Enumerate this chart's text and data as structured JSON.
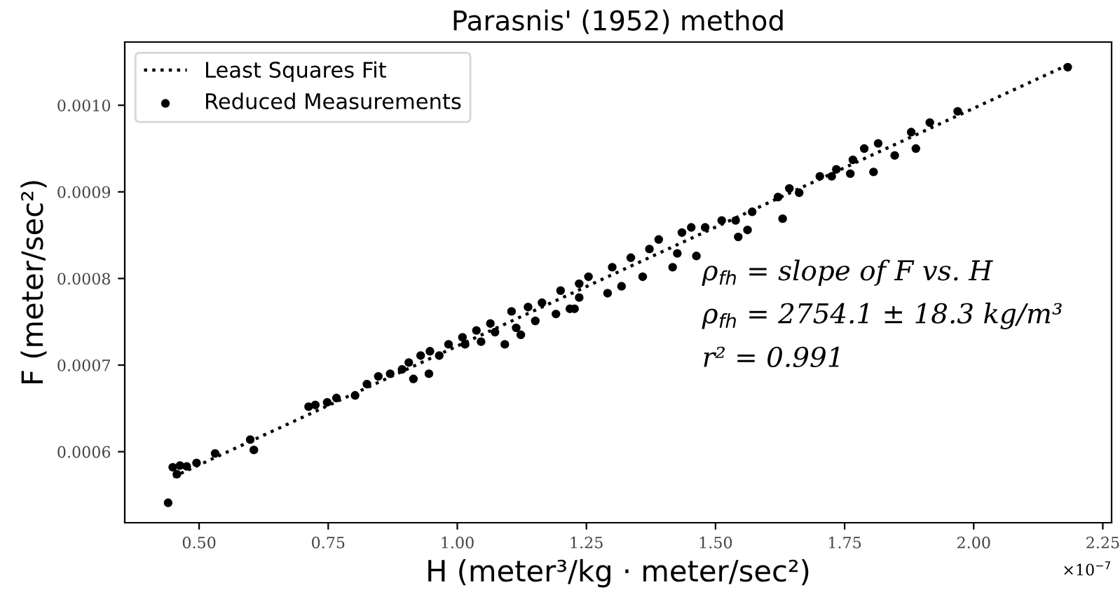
{
  "chart_data": {
    "type": "scatter",
    "title": "Parasnis' (1952) method",
    "xlabel": "H (meter³/kg · meter/sec²)",
    "ylabel": "F (meter/sec²)",
    "series": [
      {
        "name": "Least Squares Fit",
        "type": "line",
        "line_style": "dotted",
        "marker": "none",
        "color": "#000000",
        "x": [
          0.45,
          2.18
        ],
        "values": [
          0.000571,
          0.001046
        ]
      },
      {
        "name": "Reduced Measurements",
        "marker": "circle",
        "color": "#000000",
        "x": [
          0.44,
          0.449,
          0.457,
          0.463,
          0.476,
          0.495,
          0.531,
          0.599,
          0.606,
          0.712,
          0.725,
          0.748,
          0.766,
          0.802,
          0.825,
          0.847,
          0.87,
          0.893,
          0.906,
          0.915,
          0.929,
          0.945,
          0.947,
          0.965,
          0.983,
          1.01,
          1.015,
          1.037,
          1.046,
          1.064,
          1.073,
          1.092,
          1.105,
          1.114,
          1.123,
          1.137,
          1.151,
          1.164,
          1.191,
          1.2,
          1.218,
          1.236,
          1.236,
          1.227,
          1.254,
          1.291,
          1.3,
          1.318,
          1.336,
          1.359,
          1.372,
          1.39,
          1.417,
          1.426,
          1.435,
          1.453,
          1.463,
          1.48,
          1.512,
          1.539,
          1.544,
          1.562,
          1.571,
          1.621,
          1.63,
          1.643,
          1.662,
          1.702,
          1.725,
          1.734,
          1.761,
          1.766,
          1.788,
          1.806,
          1.815,
          1.847,
          1.879,
          1.888,
          1.915,
          1.969,
          2.182
        ],
        "values": [
          0.000541,
          0.000582,
          0.000574,
          0.000584,
          0.000583,
          0.000587,
          0.000598,
          0.000614,
          0.000602,
          0.000652,
          0.000654,
          0.000657,
          0.000662,
          0.000665,
          0.000678,
          0.000687,
          0.00069,
          0.000695,
          0.000703,
          0.000684,
          0.000711,
          0.00069,
          0.000716,
          0.000711,
          0.000724,
          0.000732,
          0.000724,
          0.00074,
          0.000727,
          0.000748,
          0.000738,
          0.000724,
          0.000762,
          0.000743,
          0.000735,
          0.000767,
          0.000751,
          0.000772,
          0.000759,
          0.000786,
          0.000765,
          0.000794,
          0.000778,
          0.000765,
          0.000802,
          0.000783,
          0.000813,
          0.000791,
          0.000824,
          0.000802,
          0.000834,
          0.000845,
          0.000813,
          0.000829,
          0.000853,
          0.000859,
          0.000826,
          0.000859,
          0.000867,
          0.000867,
          0.000848,
          0.000856,
          0.000877,
          0.000894,
          0.000869,
          0.000904,
          0.000899,
          0.000918,
          0.000918,
          0.000926,
          0.000921,
          0.000937,
          0.00095,
          0.000923,
          0.000956,
          0.000942,
          0.000969,
          0.00095,
          0.00098,
          0.000993,
          0.001044
        ]
      }
    ],
    "xlim": [
      0.356,
      2.267
    ],
    "xticks": [
      {
        "value": 0.5,
        "label": "0.50"
      },
      {
        "value": 0.75,
        "label": "0.75"
      },
      {
        "value": 1.0,
        "label": "1.00"
      },
      {
        "value": 1.25,
        "label": "1.25"
      },
      {
        "value": 1.5,
        "label": "1.50"
      },
      {
        "value": 1.75,
        "label": "1.75"
      },
      {
        "value": 2.0,
        "label": "2.00"
      },
      {
        "value": 2.25,
        "label": "2.25"
      }
    ],
    "ylim": [
      0.000518,
      0.001073
    ],
    "yticks": [
      {
        "value": 0.0006,
        "label": "0.0006"
      },
      {
        "value": 0.0007,
        "label": "0.0007"
      },
      {
        "value": 0.0008,
        "label": "0.0008"
      },
      {
        "value": 0.0009,
        "label": "0.0009"
      },
      {
        "value": 0.001,
        "label": "0.0010"
      }
    ],
    "annotations": [
      "×10$^{−7}$",
      "ρ$_{fh}$ = slope of F vs. H",
      "ρ$_{fh}$ = 2754.1 ± 18.3 kg/m³",
      "r² = 0.991"
    ],
    "legend": "top left",
    "grid": false
  }
}
